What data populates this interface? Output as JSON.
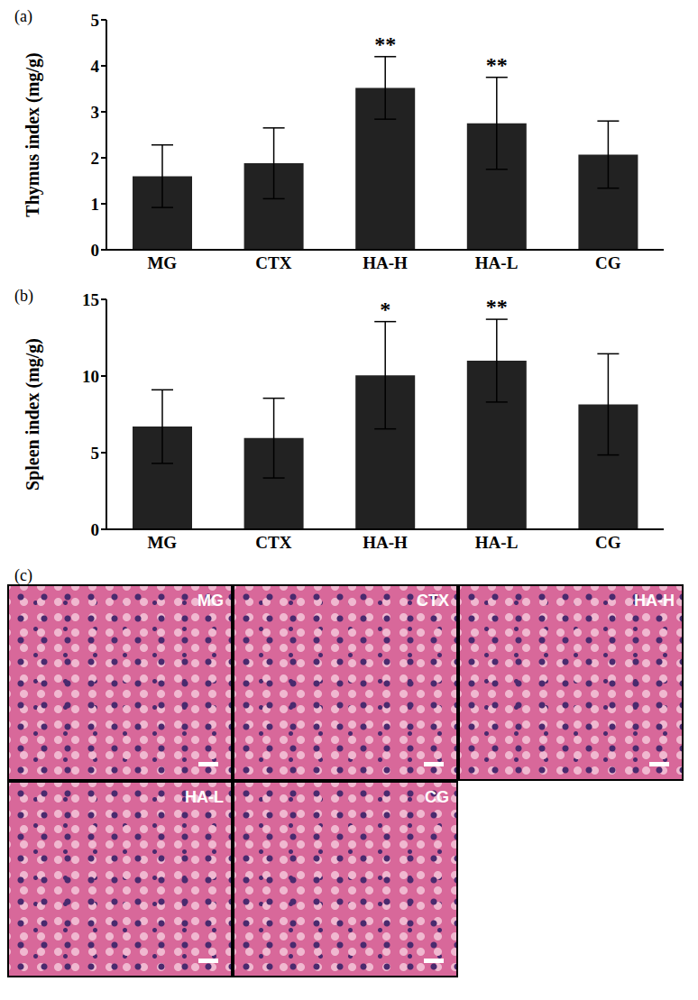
{
  "chart_data": [
    {
      "type": "bar",
      "panel": "(a)",
      "y_label": "Thymus index (mg/g)",
      "categories": [
        "MG",
        "CTX",
        "HA-H",
        "HA-L",
        "CG"
      ],
      "values": [
        1.6,
        1.88,
        3.52,
        2.75,
        2.07
      ],
      "errors": [
        0.68,
        0.77,
        0.68,
        1.0,
        0.73
      ],
      "significance": [
        null,
        null,
        "**",
        "**",
        null
      ],
      "color": "#222222",
      "ylim": [
        0,
        5
      ],
      "yticks": [
        0,
        1,
        2,
        3,
        4,
        5
      ]
    },
    {
      "type": "bar",
      "panel": "(b)",
      "y_label": "Spleen index (mg/g)",
      "categories": [
        "MG",
        "CTX",
        "HA-H",
        "HA-L",
        "CG"
      ],
      "values": [
        6.7,
        5.95,
        10.05,
        11.0,
        8.15
      ],
      "errors": [
        2.4,
        2.6,
        3.5,
        2.7,
        3.3
      ],
      "significance": [
        null,
        null,
        "*",
        "**",
        null
      ],
      "color": "#222222",
      "ylim": [
        0,
        15
      ],
      "yticks": [
        0,
        5,
        10,
        15
      ]
    }
  ],
  "histology": {
    "panel": "(c)",
    "images": [
      "MG",
      "CTX",
      "HA-H",
      "HA-L",
      "CG"
    ]
  }
}
